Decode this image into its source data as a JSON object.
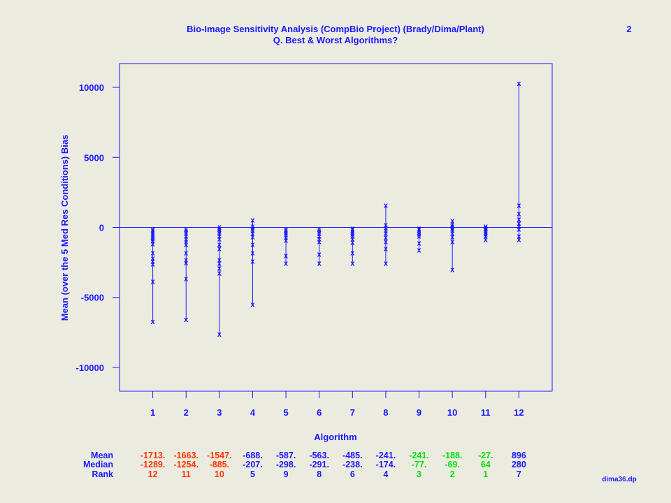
{
  "header": {
    "title": "Bio-Image Sensitivity Analysis (CompBio Project) (Brady/Dima/Plant)",
    "subtitle": "Q. Best & Worst Algorithms?",
    "page_number": "2"
  },
  "footer": {
    "filename": "dima36.dp"
  },
  "colors": {
    "primary": "#1a1aff",
    "worst": "#ff3300",
    "best": "#00e000",
    "middle": "#1a1aff"
  },
  "chart_data": {
    "type": "scatter",
    "title": "Bio-Image Sensitivity Analysis (CompBio Project) (Brady/Dima/Plant)",
    "subtitle": "Q. Best & Worst Algorithms?",
    "xlabel": "Algorithm",
    "ylabel": "Mean (over the 5 Med Res Conditions) Bias",
    "xlim": [
      0,
      13
    ],
    "ylim": [
      -11700,
      11700
    ],
    "x_ticks": [
      1,
      2,
      3,
      4,
      5,
      6,
      7,
      8,
      9,
      10,
      11,
      12
    ],
    "y_ticks": [
      -10000,
      -5000,
      0,
      5000,
      10000
    ],
    "y_tick_labels": [
      "-10000",
      "-5000",
      "0",
      "5000",
      "10000"
    ],
    "reference_line": 0,
    "marker": "x",
    "series": [
      {
        "x": 1,
        "values": [
          -100,
          -200,
          -350,
          -500,
          -650,
          -800,
          -950,
          -1150,
          -1800,
          -2200,
          -2400,
          -2600,
          -3850,
          -6700
        ]
      },
      {
        "x": 2,
        "values": [
          -100,
          -250,
          -400,
          -600,
          -800,
          -1000,
          -1200,
          -1800,
          -2300,
          -2500,
          -3650,
          -6550
        ]
      },
      {
        "x": 3,
        "values": [
          50,
          -100,
          -250,
          -400,
          -600,
          -800,
          -1200,
          -1500,
          -2300,
          -2550,
          -2900,
          -3250,
          -7600
        ]
      },
      {
        "x": 4,
        "values": [
          550,
          100,
          -50,
          -200,
          -400,
          -650,
          -1200,
          -1800,
          -2400,
          -5500
        ]
      },
      {
        "x": 5,
        "values": [
          -100,
          -200,
          -350,
          -500,
          -700,
          -900,
          -2000,
          -2550
        ]
      },
      {
        "x": 6,
        "values": [
          -100,
          -250,
          -400,
          -600,
          -800,
          -1000,
          -1900,
          -2550
        ]
      },
      {
        "x": 7,
        "values": [
          -50,
          -150,
          -300,
          -450,
          -600,
          -800,
          -1050,
          -1800,
          -2550
        ]
      },
      {
        "x": 8,
        "values": [
          1600,
          200,
          0,
          -200,
          -400,
          -700,
          -1000,
          -1500,
          -2550
        ]
      },
      {
        "x": 9,
        "values": [
          -50,
          -150,
          -300,
          -450,
          -600,
          -1100,
          -1600
        ]
      },
      {
        "x": 10,
        "values": [
          500,
          250,
          100,
          -50,
          -200,
          -400,
          -650,
          -1000,
          -3000
        ]
      },
      {
        "x": 11,
        "values": [
          100,
          0,
          -100,
          -200,
          -300,
          -450,
          -600,
          -850
        ]
      },
      {
        "x": 12,
        "values": [
          10300,
          1600,
          1000,
          600,
          300,
          100,
          -100,
          -600,
          -850
        ]
      }
    ],
    "summary_table": {
      "row_labels": [
        "Mean",
        "Median",
        "Rank"
      ],
      "columns": [
        {
          "mean": "-1713.",
          "median": "-1289.",
          "rank": "12",
          "group": "worst"
        },
        {
          "mean": "-1663.",
          "median": "-1254.",
          "rank": "11",
          "group": "worst"
        },
        {
          "mean": "-1547.",
          "median": "-885.",
          "rank": "10",
          "group": "worst"
        },
        {
          "mean": "-688.",
          "median": "-207.",
          "rank": "5",
          "group": "middle"
        },
        {
          "mean": "-587.",
          "median": "-298.",
          "rank": "9",
          "group": "middle"
        },
        {
          "mean": "-563.",
          "median": "-291.",
          "rank": "8",
          "group": "middle"
        },
        {
          "mean": "-485.",
          "median": "-238.",
          "rank": "6",
          "group": "middle"
        },
        {
          "mean": "-241.",
          "median": "-174.",
          "rank": "4",
          "group": "middle"
        },
        {
          "mean": "-241.",
          "median": "-77.",
          "rank": "3",
          "group": "best"
        },
        {
          "mean": "-188.",
          "median": "-69.",
          "rank": "2",
          "group": "best"
        },
        {
          "mean": "-27.",
          "median": "64",
          "rank": "1",
          "group": "best"
        },
        {
          "mean": "896",
          "median": "280",
          "rank": "7",
          "group": "middle"
        }
      ]
    }
  }
}
